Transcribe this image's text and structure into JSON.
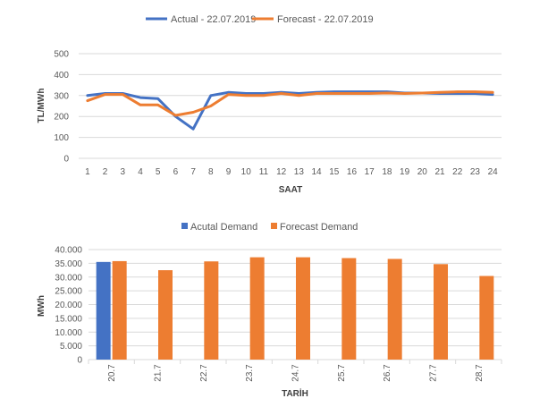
{
  "chart_data": [
    {
      "type": "line",
      "title": "",
      "xlabel": "SAAT",
      "ylabel": "TL/MWh",
      "ylim": [
        0,
        500
      ],
      "yticks": [
        "0",
        "100",
        "200",
        "300",
        "400",
        "500"
      ],
      "x": [
        "1",
        "2",
        "3",
        "4",
        "5",
        "6",
        "7",
        "8",
        "9",
        "10",
        "11",
        "12",
        "13",
        "14",
        "15",
        "16",
        "17",
        "18",
        "19",
        "20",
        "21",
        "22",
        "23",
        "24"
      ],
      "series": [
        {
          "name": "Actual - 22.07.2019",
          "color": "#4472C4",
          "values": [
            300,
            310,
            310,
            290,
            285,
            200,
            140,
            300,
            315,
            310,
            310,
            315,
            310,
            315,
            318,
            318,
            318,
            318,
            312,
            312,
            310,
            310,
            310,
            305
          ]
        },
        {
          "name": "Forecast - 22.07.2019",
          "color": "#ED7D31",
          "values": [
            275,
            305,
            305,
            255,
            255,
            205,
            220,
            250,
            305,
            300,
            300,
            310,
            300,
            310,
            310,
            310,
            310,
            312,
            310,
            312,
            315,
            318,
            318,
            315
          ]
        }
      ],
      "grid": true,
      "legend_position": "top"
    },
    {
      "type": "bar",
      "title": "",
      "xlabel": "TARİH",
      "ylabel": "MWh",
      "ylim": [
        0,
        40000
      ],
      "yticks": [
        "0",
        "5.000",
        "10.000",
        "15.000",
        "20.000",
        "25.000",
        "30.000",
        "35.000",
        "40.000"
      ],
      "categories": [
        "20.7",
        "21.7",
        "22.7",
        "23.7",
        "24.7",
        "25.7",
        "26.7",
        "27.7",
        "28.7"
      ],
      "series": [
        {
          "name": "Acutal Demand",
          "color": "#4472C4",
          "values": [
            35500,
            null,
            null,
            null,
            null,
            null,
            null,
            null,
            null
          ]
        },
        {
          "name": "Forecast Demand",
          "color": "#ED7D31",
          "values": [
            35800,
            32500,
            35700,
            37200,
            37200,
            36900,
            36600,
            34700,
            30400
          ]
        }
      ],
      "grid": true,
      "legend_position": "top"
    }
  ]
}
